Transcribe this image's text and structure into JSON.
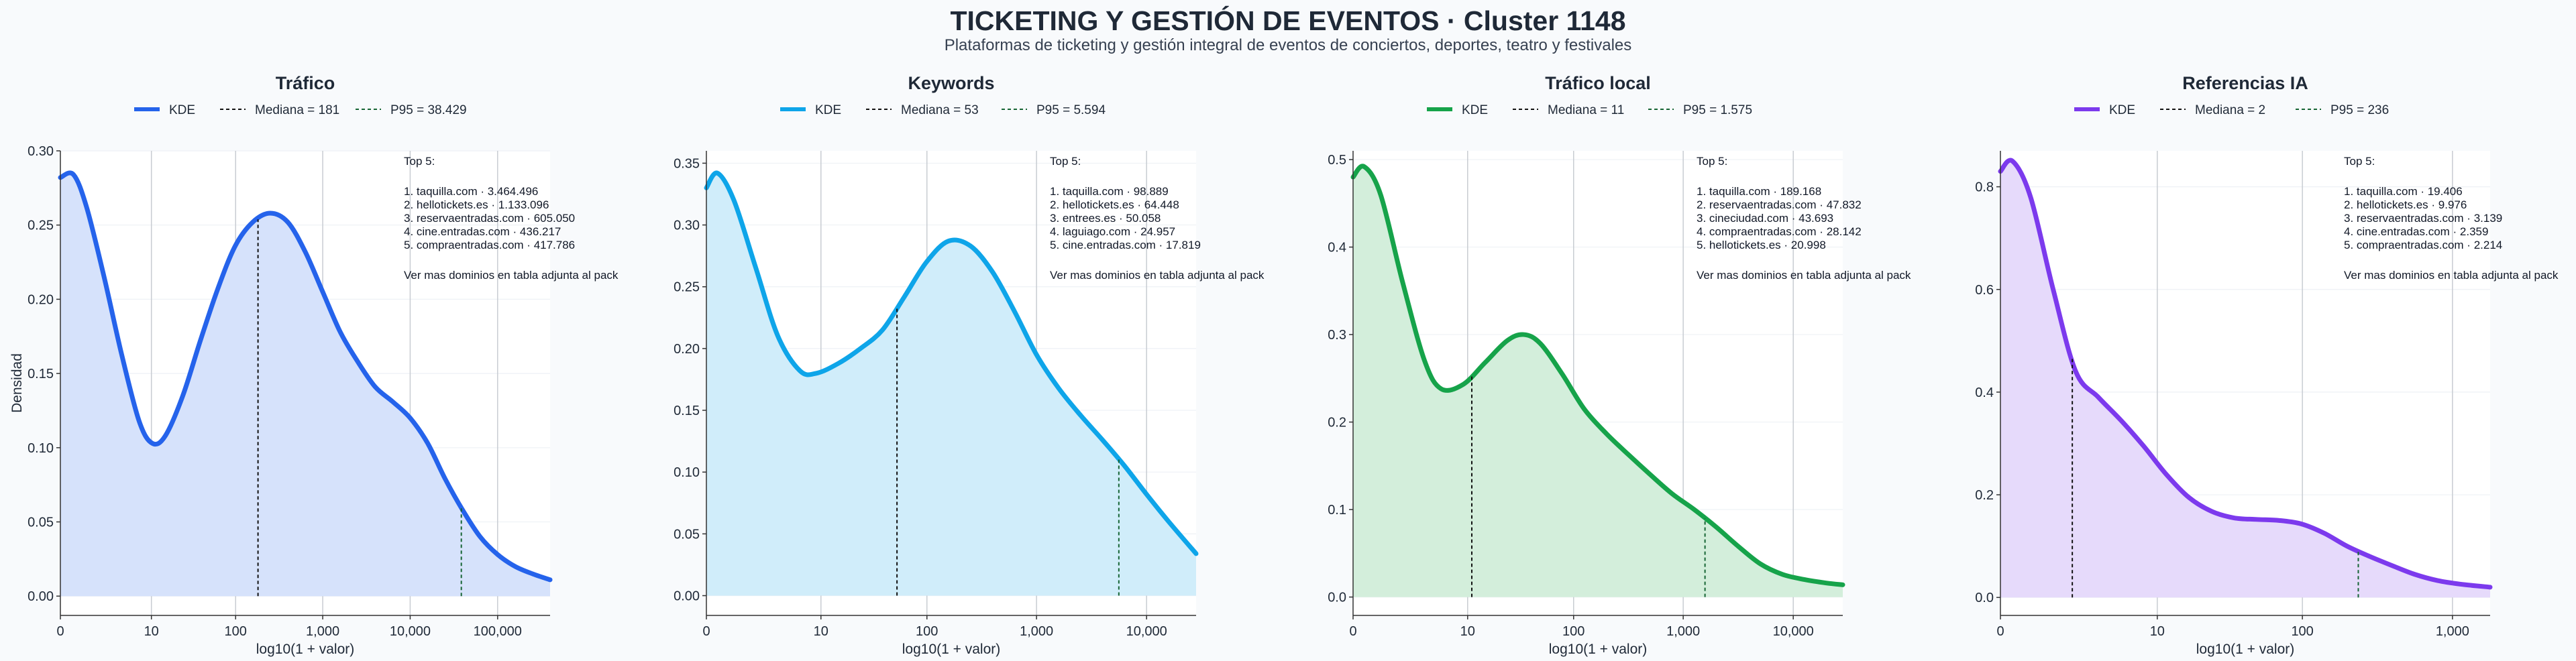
{
  "header": {
    "title": "TICKETING Y GESTIÓN DE EVENTOS · Cluster 1148",
    "subtitle": "Plataformas de ticketing y gestión integral de eventos de conciertos, deportes, teatro y festivales"
  },
  "chart_data": [
    {
      "type": "area",
      "title": "Tráfico",
      "xlabel": "log10(1 + valor)",
      "ylabel": "Densidad",
      "color": "#2563eb",
      "fill": "#d6e2fb",
      "xlim": [
        0,
        5.6
      ],
      "ylim": [
        -0.013,
        0.3
      ],
      "yticks": [
        0.0,
        0.05,
        0.1,
        0.15,
        0.2,
        0.25,
        0.3
      ],
      "ytick_labels": [
        "0.00",
        "0.05",
        "0.10",
        "0.15",
        "0.20",
        "0.25",
        "0.30"
      ],
      "xticks": [
        0,
        1.041,
        2.004,
        3.0,
        4.0,
        5.0
      ],
      "xtick_labels": [
        "0",
        "10",
        "100",
        "1,000",
        "10,000",
        "100,000"
      ],
      "grid": true,
      "legend": {
        "position": "top",
        "entries": [
          "KDE",
          "Mediana = 181",
          "P95 = 38.429"
        ]
      },
      "median": 2.26,
      "p95": 4.585,
      "x": [
        0,
        0.15,
        0.3,
        0.5,
        0.7,
        0.9,
        1.05,
        1.2,
        1.4,
        1.6,
        1.8,
        2.0,
        2.2,
        2.4,
        2.6,
        2.8,
        3.0,
        3.2,
        3.4,
        3.6,
        3.8,
        4.0,
        4.2,
        4.4,
        4.6,
        4.8,
        5.0,
        5.2,
        5.4,
        5.6
      ],
      "y": [
        0.282,
        0.284,
        0.262,
        0.215,
        0.163,
        0.118,
        0.103,
        0.108,
        0.135,
        0.172,
        0.207,
        0.236,
        0.252,
        0.258,
        0.252,
        0.232,
        0.205,
        0.178,
        0.158,
        0.141,
        0.131,
        0.12,
        0.103,
        0.079,
        0.058,
        0.04,
        0.028,
        0.02,
        0.015,
        0.011
      ],
      "top_list": {
        "heading": "Top 5:",
        "items": [
          "1. taquilla.com · 3.464.496",
          "2. hellotickets.es · 1.133.096",
          "3. reservaentradas.com · 605.050",
          "4. cine.entradas.com · 436.217",
          "5. compraentradas.com · 417.786"
        ],
        "footer": "Ver mas dominios en tabla adjunta al pack"
      }
    },
    {
      "type": "area",
      "title": "Keywords",
      "xlabel": "log10(1 + valor)",
      "ylabel": "",
      "color": "#0ea5e9",
      "fill": "#d0edfa",
      "xlim": [
        0,
        4.45
      ],
      "ylim": [
        -0.016,
        0.36
      ],
      "yticks": [
        0.0,
        0.05,
        0.1,
        0.15,
        0.2,
        0.25,
        0.3,
        0.35
      ],
      "ytick_labels": [
        "0.00",
        "0.05",
        "0.10",
        "0.15",
        "0.20",
        "0.25",
        "0.30",
        "0.35"
      ],
      "xticks": [
        0,
        1.041,
        2.004,
        3.0,
        4.0
      ],
      "xtick_labels": [
        "0",
        "10",
        "100",
        "1,000",
        "10,000"
      ],
      "grid": true,
      "legend": {
        "position": "top",
        "entries": [
          "KDE",
          "Mediana = 53",
          "P95 = 5.594"
        ]
      },
      "median": 1.732,
      "p95": 3.748,
      "x": [
        0,
        0.1,
        0.25,
        0.45,
        0.65,
        0.85,
        1.0,
        1.2,
        1.4,
        1.6,
        1.8,
        2.0,
        2.2,
        2.4,
        2.6,
        2.8,
        3.0,
        3.2,
        3.4,
        3.6,
        3.8,
        4.0,
        4.2,
        4.45
      ],
      "y": [
        0.33,
        0.342,
        0.32,
        0.265,
        0.21,
        0.182,
        0.18,
        0.188,
        0.2,
        0.215,
        0.242,
        0.27,
        0.287,
        0.283,
        0.262,
        0.23,
        0.195,
        0.168,
        0.146,
        0.126,
        0.105,
        0.082,
        0.06,
        0.034
      ],
      "top_list": {
        "heading": "Top 5:",
        "items": [
          "1. taquilla.com · 98.889",
          "2. hellotickets.es · 64.448",
          "3. entrees.es · 50.058",
          "4. laguiago.com · 24.957",
          "5. cine.entradas.com · 17.819"
        ],
        "footer": "Ver mas dominios en tabla adjunta al pack"
      }
    },
    {
      "type": "area",
      "title": "Tráfico local",
      "xlabel": "log10(1 + valor)",
      "ylabel": "",
      "color": "#16a34a",
      "fill": "#d3eedb",
      "xlim": [
        0,
        4.45
      ],
      "ylim": [
        -0.021,
        0.51
      ],
      "yticks": [
        0.0,
        0.1,
        0.2,
        0.3,
        0.4,
        0.5
      ],
      "ytick_labels": [
        "0.0",
        "0.1",
        "0.2",
        "0.3",
        "0.4",
        "0.5"
      ],
      "xticks": [
        0,
        1.041,
        2.004,
        3.0,
        4.0
      ],
      "xtick_labels": [
        "0",
        "10",
        "100",
        "1,000",
        "10,000"
      ],
      "grid": true,
      "legend": {
        "position": "top",
        "entries": [
          "KDE",
          "Mediana = 11",
          "P95 = 1.575"
        ]
      },
      "median": 1.079,
      "p95": 3.198,
      "x": [
        0,
        0.1,
        0.25,
        0.45,
        0.65,
        0.8,
        1.0,
        1.2,
        1.4,
        1.55,
        1.7,
        1.9,
        2.1,
        2.3,
        2.5,
        2.7,
        2.9,
        3.1,
        3.3,
        3.5,
        3.7,
        3.9,
        4.1,
        4.3,
        4.45
      ],
      "y": [
        0.48,
        0.492,
        0.46,
        0.36,
        0.27,
        0.238,
        0.243,
        0.268,
        0.293,
        0.3,
        0.29,
        0.255,
        0.215,
        0.187,
        0.163,
        0.14,
        0.118,
        0.1,
        0.08,
        0.058,
        0.038,
        0.026,
        0.02,
        0.016,
        0.014
      ],
      "top_list": {
        "heading": "Top 5:",
        "items": [
          "1. taquilla.com · 189.168",
          "2. reservaentradas.com · 47.832",
          "3. cineciudad.com · 43.693",
          "4. compraentradas.com · 28.142",
          "5. hellotickets.es · 20.998"
        ],
        "footer": "Ver mas dominios en tabla adjunta al pack"
      }
    },
    {
      "type": "area",
      "title": "Referencias IA",
      "xlabel": "log10(1 + valor)",
      "ylabel": "",
      "color": "#7c3aed",
      "fill": "#e6dafb",
      "xlim": [
        0,
        3.25
      ],
      "ylim": [
        -0.035,
        0.87
      ],
      "yticks": [
        0.0,
        0.2,
        0.4,
        0.6,
        0.8
      ],
      "ytick_labels": [
        "0.0",
        "0.2",
        "0.4",
        "0.6",
        "0.8"
      ],
      "xticks": [
        0,
        1.041,
        2.004,
        3.0
      ],
      "xtick_labels": [
        "0",
        "10",
        "100",
        "1,000"
      ],
      "grid": true,
      "legend": {
        "position": "top",
        "entries": [
          "KDE",
          "Mediana = 2",
          "P95 = 236"
        ]
      },
      "median": 0.477,
      "p95": 2.375,
      "x": [
        0,
        0.08,
        0.2,
        0.35,
        0.5,
        0.65,
        0.8,
        0.95,
        1.1,
        1.25,
        1.4,
        1.55,
        1.7,
        1.85,
        2.0,
        2.15,
        2.3,
        2.45,
        2.6,
        2.75,
        2.9,
        3.05,
        3.25
      ],
      "y": [
        0.83,
        0.85,
        0.78,
        0.6,
        0.44,
        0.39,
        0.345,
        0.295,
        0.24,
        0.195,
        0.168,
        0.155,
        0.152,
        0.15,
        0.143,
        0.125,
        0.1,
        0.08,
        0.062,
        0.045,
        0.033,
        0.026,
        0.02
      ],
      "top_list": {
        "heading": "Top 5:",
        "items": [
          "1. taquilla.com · 19.406",
          "2. hellotickets.es · 9.976",
          "3. reservaentradas.com · 3.139",
          "4. cine.entradas.com · 2.359",
          "5. compraentradas.com · 2.214"
        ],
        "footer": "Ver mas dominios en tabla adjunta al pack"
      }
    }
  ]
}
